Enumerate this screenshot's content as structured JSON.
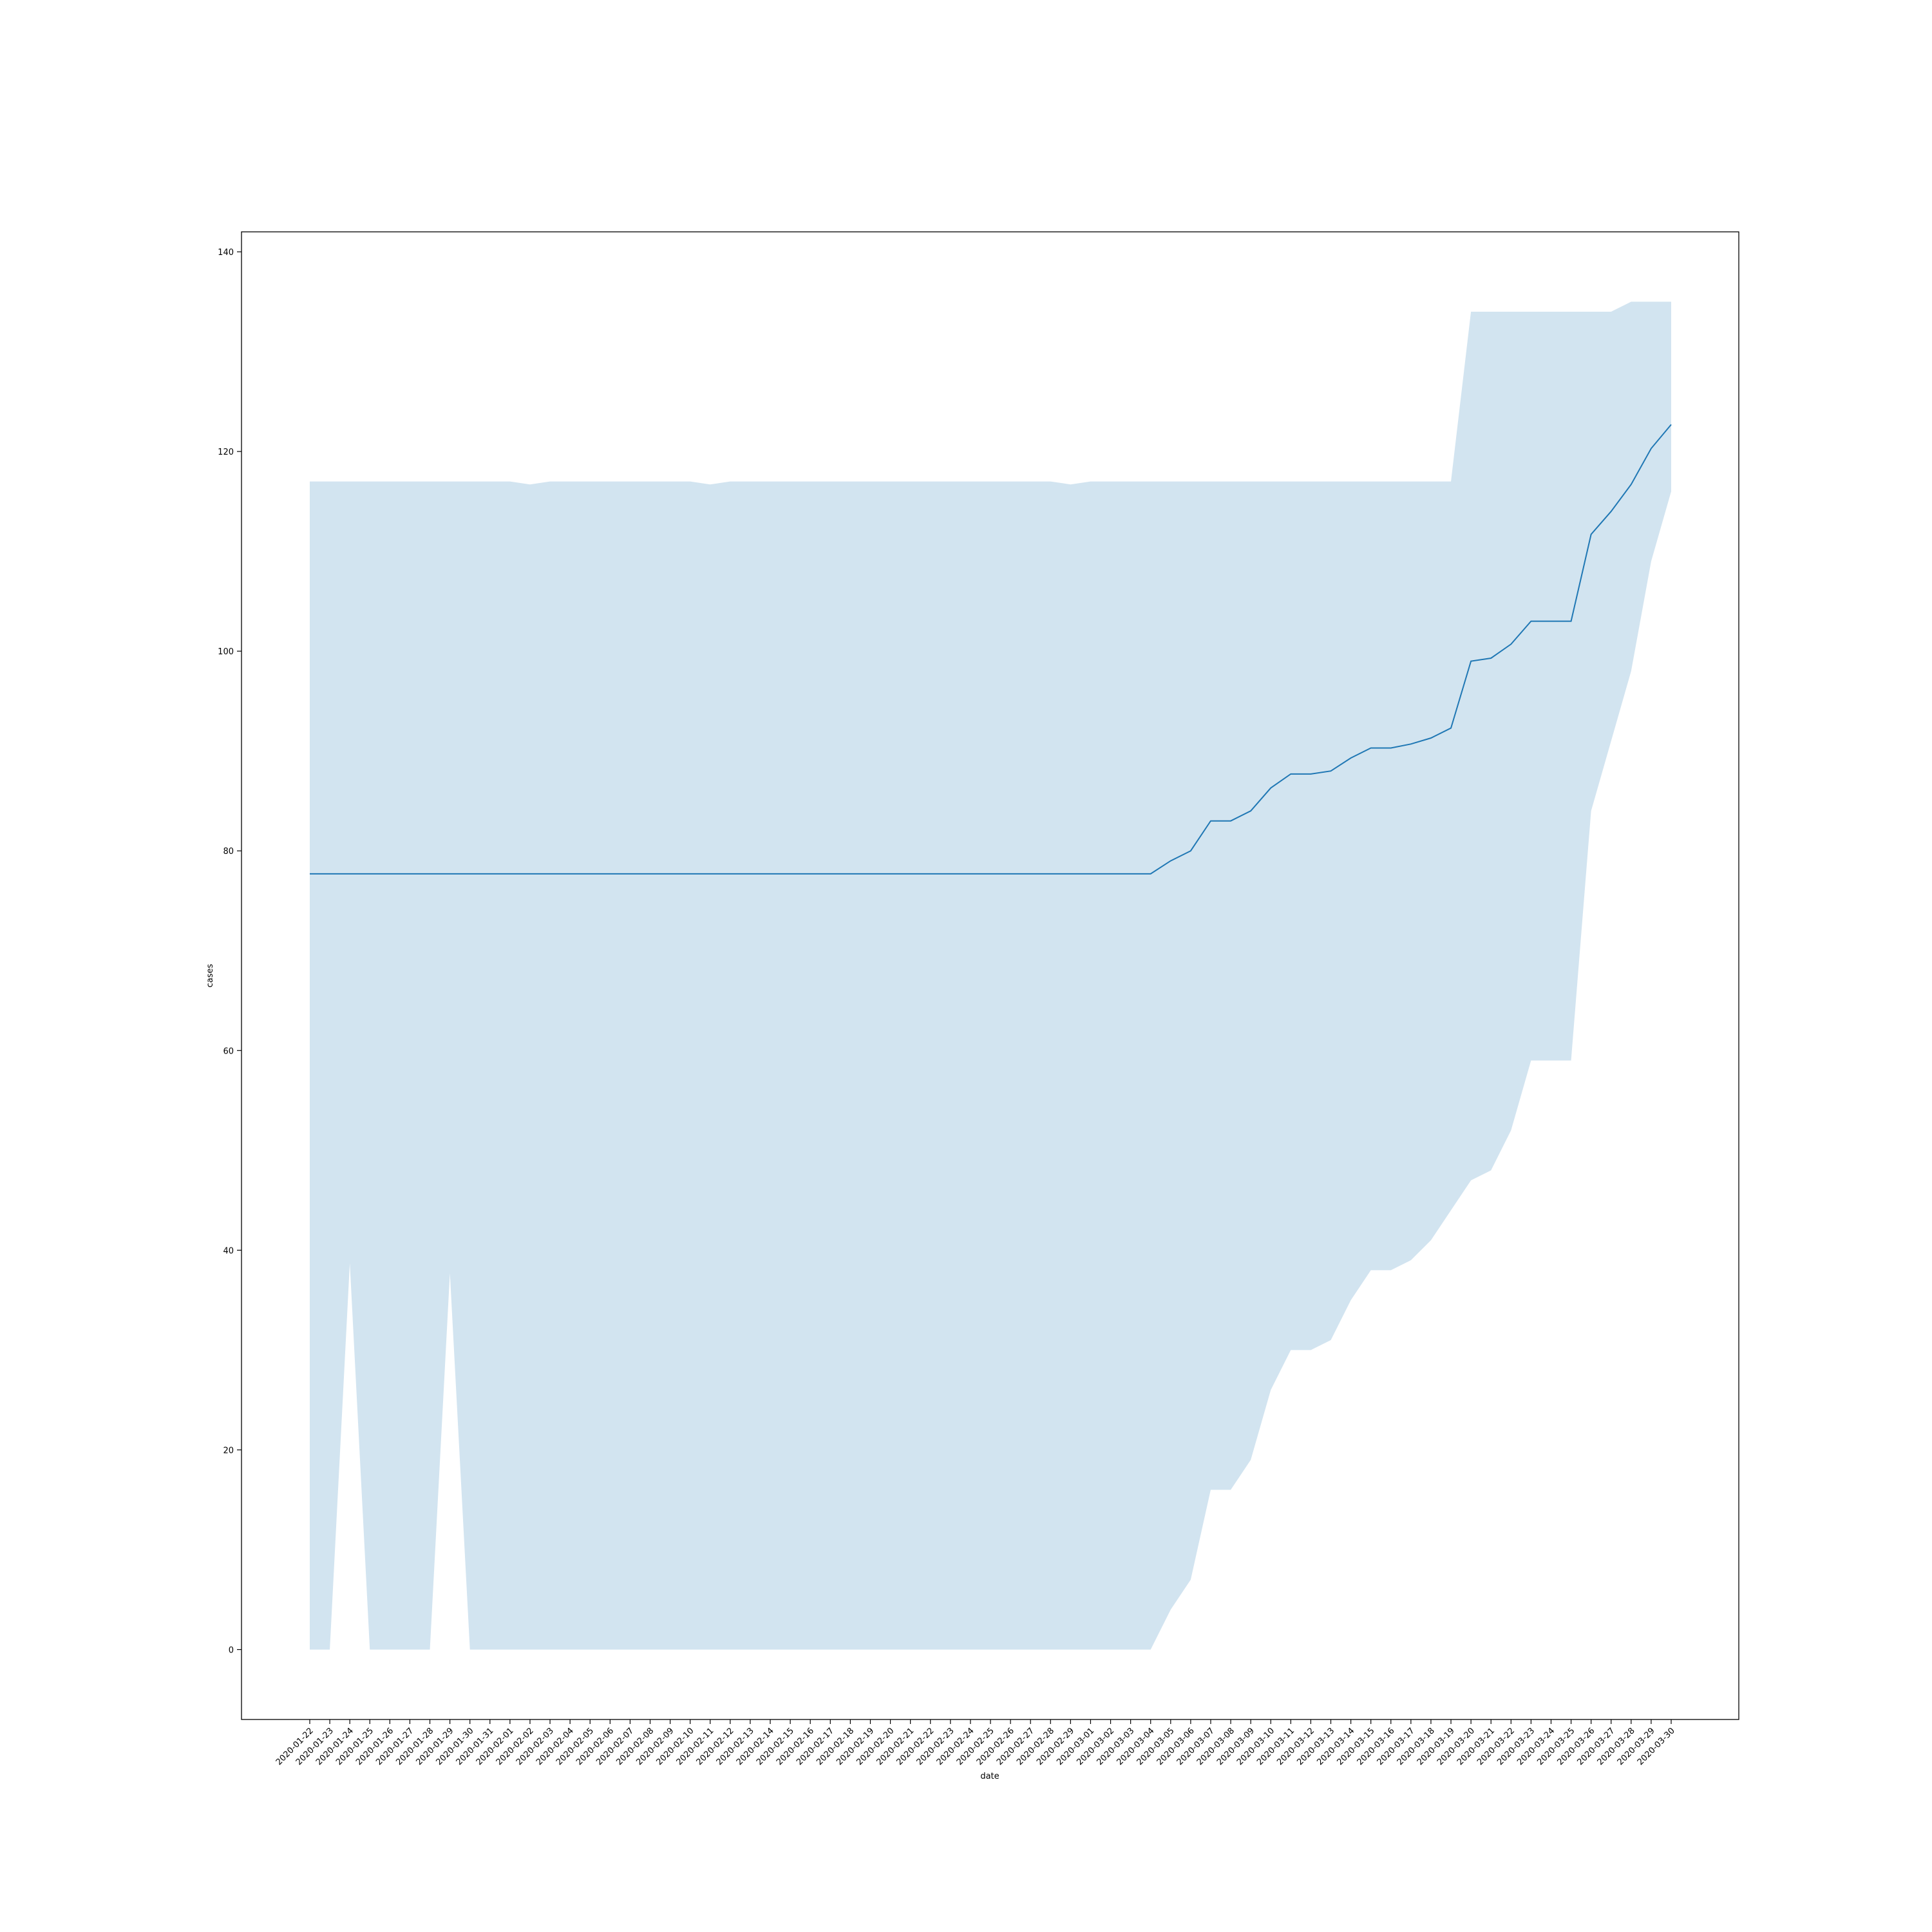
{
  "chart_data": {
    "type": "line",
    "xlabel": "date",
    "ylabel": "cases",
    "ylim": [
      -7,
      142
    ],
    "yticks": [
      0,
      20,
      40,
      60,
      80,
      100,
      120,
      140
    ],
    "grid": false,
    "colors": {
      "line": "#1f77b4",
      "band": "#1f77b4"
    },
    "x": [
      "2020-01-22",
      "2020-01-23",
      "2020-01-24",
      "2020-01-25",
      "2020-01-26",
      "2020-01-27",
      "2020-01-28",
      "2020-01-29",
      "2020-01-30",
      "2020-01-31",
      "2020-02-01",
      "2020-02-02",
      "2020-02-03",
      "2020-02-04",
      "2020-02-05",
      "2020-02-06",
      "2020-02-07",
      "2020-02-08",
      "2020-02-09",
      "2020-02-10",
      "2020-02-11",
      "2020-02-12",
      "2020-02-13",
      "2020-02-14",
      "2020-02-15",
      "2020-02-16",
      "2020-02-17",
      "2020-02-18",
      "2020-02-19",
      "2020-02-20",
      "2020-02-21",
      "2020-02-22",
      "2020-02-23",
      "2020-02-24",
      "2020-02-25",
      "2020-02-26",
      "2020-02-27",
      "2020-02-28",
      "2020-02-29",
      "2020-03-01",
      "2020-03-02",
      "2020-03-03",
      "2020-03-04",
      "2020-03-05",
      "2020-03-06",
      "2020-03-07",
      "2020-03-08",
      "2020-03-09",
      "2020-03-10",
      "2020-03-11",
      "2020-03-12",
      "2020-03-13",
      "2020-03-14",
      "2020-03-15",
      "2020-03-16",
      "2020-03-17",
      "2020-03-18",
      "2020-03-19",
      "2020-03-20",
      "2020-03-21",
      "2020-03-22",
      "2020-03-23",
      "2020-03-24",
      "2020-03-25",
      "2020-03-26",
      "2020-03-27",
      "2020-03-28",
      "2020-03-29",
      "2020-03-30"
    ],
    "series": [
      {
        "values": [
          77.7,
          77.7,
          77.7,
          77.7,
          77.7,
          77.7,
          77.7,
          77.7,
          77.7,
          77.7,
          77.7,
          77.7,
          77.7,
          77.7,
          77.7,
          77.7,
          77.7,
          77.7,
          77.7,
          77.7,
          77.7,
          77.7,
          77.7,
          77.7,
          77.7,
          77.7,
          77.7,
          77.7,
          77.7,
          77.7,
          77.7,
          77.7,
          77.7,
          77.7,
          77.7,
          77.7,
          77.7,
          77.7,
          77.7,
          77.7,
          77.7,
          77.7,
          77.7,
          79.0,
          80.0,
          83.0,
          83.0,
          84.0,
          86.3,
          87.7,
          87.7,
          88.0,
          89.3,
          90.3,
          90.3,
          90.7,
          91.3,
          92.3,
          99.0,
          99.3,
          100.7,
          103.0,
          103.0,
          103.0,
          111.7,
          114.0,
          116.7,
          120.3,
          122.7
        ],
        "ci_low": [
          0,
          0,
          38.7,
          0,
          0,
          0,
          0,
          37.7,
          0,
          0,
          0,
          0,
          0,
          0,
          0,
          0,
          0,
          0,
          0,
          0,
          0,
          0,
          0,
          0,
          0,
          0,
          0,
          0,
          0,
          0,
          0,
          0,
          0,
          0,
          0,
          0,
          0,
          0,
          0,
          0,
          0,
          0,
          0,
          4.0,
          7.0,
          16.0,
          16.0,
          19.0,
          26.0,
          30.0,
          30.0,
          31.0,
          35.0,
          38.0,
          38.0,
          39.0,
          41.0,
          44.0,
          47.0,
          48.0,
          52.0,
          59.0,
          59.0,
          59.0,
          84.0,
          91.0,
          98.0,
          109.0,
          116.0
        ],
        "ci_high": [
          117,
          117,
          117,
          117,
          117,
          117,
          117,
          117,
          117,
          117,
          117,
          116.7,
          117,
          117,
          117,
          117,
          117,
          117,
          117,
          117,
          116.7,
          117,
          117,
          117,
          117,
          117,
          117,
          117,
          117,
          117,
          117,
          117,
          117,
          117,
          117,
          117,
          117,
          117,
          116.7,
          117,
          117,
          117,
          117,
          117,
          117,
          117,
          117,
          117,
          117,
          117,
          117,
          117,
          117,
          117,
          117,
          117,
          117,
          117,
          134,
          134,
          134,
          134,
          134,
          134,
          134,
          134,
          135,
          135,
          135
        ]
      }
    ]
  }
}
